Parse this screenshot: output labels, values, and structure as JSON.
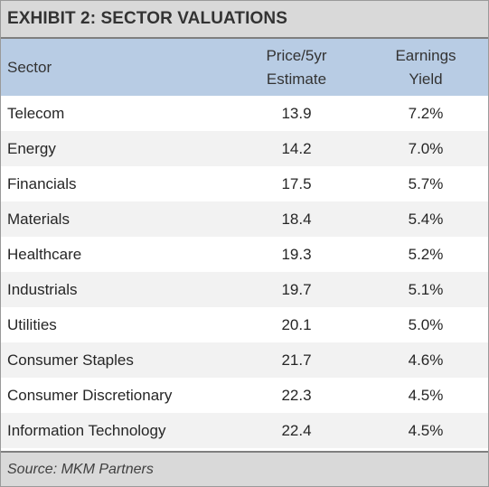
{
  "title": "EXHIBIT 2: SECTOR VALUATIONS",
  "table": {
    "headers": {
      "sector": "Sector",
      "price_line1": "Price/5yr",
      "price_line2": "Estimate",
      "yield_line1": "Earnings",
      "yield_line2": "Yield"
    },
    "rows": [
      {
        "sector": "Telecom",
        "price": "13.9",
        "yield": "7.2%"
      },
      {
        "sector": "Energy",
        "price": "14.2",
        "yield": "7.0%"
      },
      {
        "sector": "Financials",
        "price": "17.5",
        "yield": "5.7%"
      },
      {
        "sector": "Materials",
        "price": "18.4",
        "yield": "5.4%"
      },
      {
        "sector": "Healthcare",
        "price": "19.3",
        "yield": "5.2%"
      },
      {
        "sector": "Industrials",
        "price": "19.7",
        "yield": "5.1%"
      },
      {
        "sector": "Utilities",
        "price": "20.1",
        "yield": "5.0%"
      },
      {
        "sector": "Consumer Staples",
        "price": "21.7",
        "yield": "4.6%"
      },
      {
        "sector": "Consumer Discretionary",
        "price": "22.3",
        "yield": "4.5%"
      },
      {
        "sector": "Information Technology",
        "price": "22.4",
        "yield": "4.5%"
      }
    ]
  },
  "source": "Source: MKM Partners",
  "colors": {
    "header_fill": "#b8cce4",
    "title_fill": "#d9d9d9",
    "stripe_fill": "#f2f2f2"
  }
}
